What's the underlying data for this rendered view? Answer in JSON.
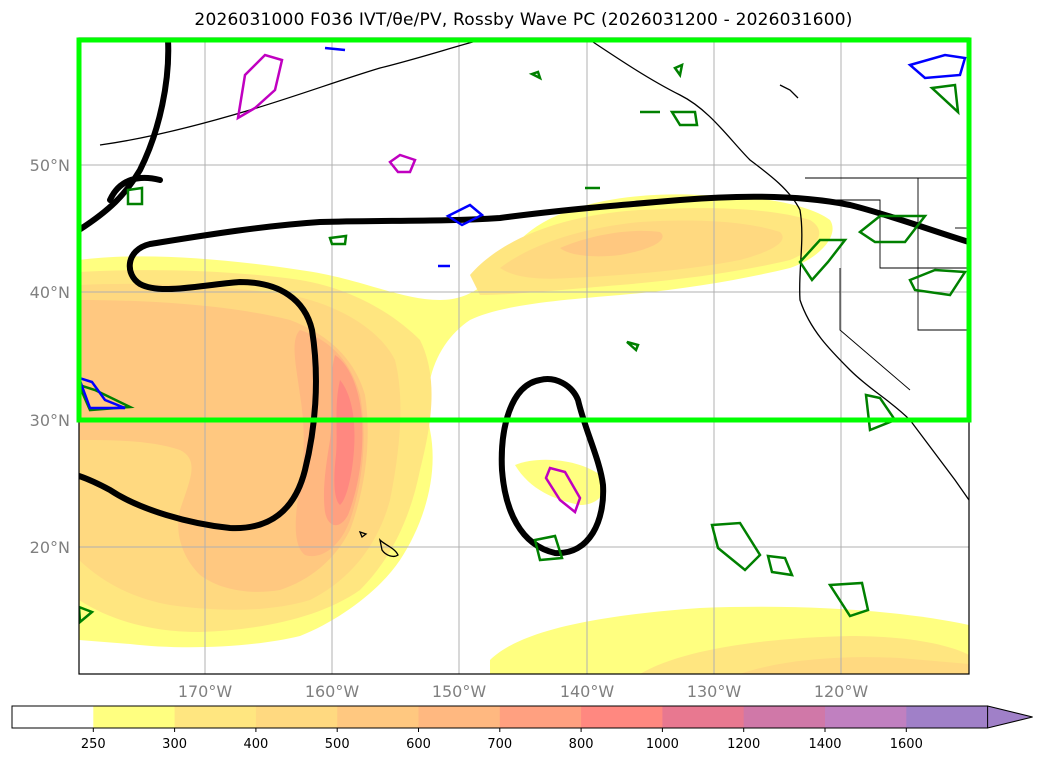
{
  "title": "2026031000 F036 IVT/θe/PV, Rossby Wave PC (2026031200 - 2026031600)",
  "map": {
    "lat_labels": [
      "50°N",
      "40°N",
      "30°N",
      "20°N"
    ],
    "lon_labels": [
      "170°W",
      "160°W",
      "150°W",
      "140°W",
      "130°W",
      "120°W"
    ],
    "grid": true,
    "highlight_box_color": "#00ff00",
    "contour_colors": {
      "rossby_wave": "#000000",
      "pv": "#008000",
      "theta_e_blue": "#0000ff",
      "theta_e_magenta": "#c000c0"
    }
  },
  "colorbar": {
    "ticks": [
      "250",
      "300",
      "400",
      "500",
      "600",
      "700",
      "800",
      "1000",
      "1200",
      "1400",
      "1600"
    ],
    "colors": [
      "#ffffff",
      "#ffff80",
      "#ffe680",
      "#ffd980",
      "#ffc880",
      "#ffb880",
      "#ffa080",
      "#ff8880",
      "#e87890",
      "#d078a8",
      "#c080c0",
      "#a080c8"
    ],
    "extend": "max"
  }
}
